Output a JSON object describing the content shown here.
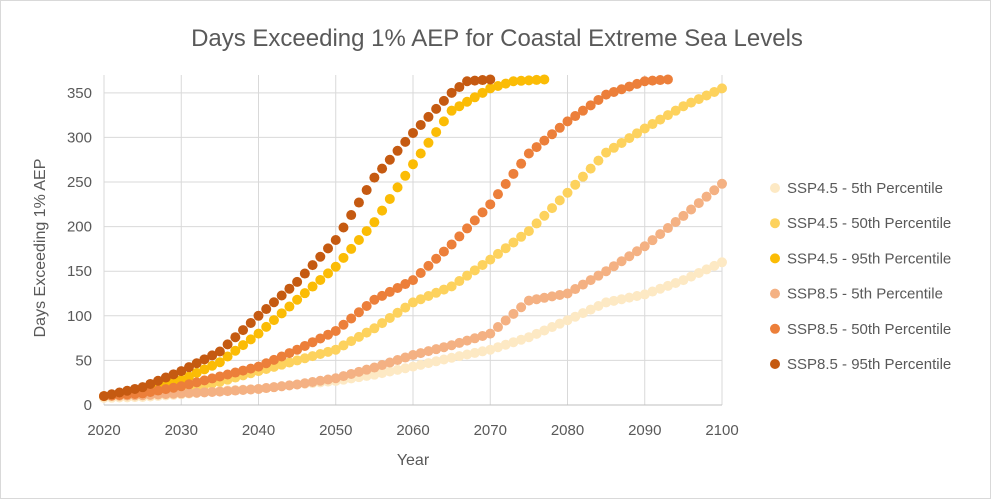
{
  "chart_data": {
    "type": "scatter",
    "title": "Days Exceeding 1% AEP for Coastal Extreme Sea Levels",
    "xlabel": "Year",
    "ylabel": "Days Exceeding 1% AEP",
    "xlim": [
      2020,
      2100
    ],
    "ylim": [
      0,
      370
    ],
    "xticks": [
      2020,
      2030,
      2040,
      2050,
      2060,
      2070,
      2080,
      2090,
      2100
    ],
    "yticks": [
      0,
      50,
      100,
      150,
      200,
      250,
      300,
      350
    ],
    "grid": "vertical and horizontal major gridlines",
    "legend_position": "right",
    "series": [
      {
        "name": "SSP4.5 - 5th Percentile",
        "color": "#fde9c4",
        "x": [
          2020,
          2025,
          2030,
          2035,
          2040,
          2045,
          2050,
          2055,
          2060,
          2065,
          2070,
          2075,
          2080,
          2085,
          2090,
          2095,
          2100
        ],
        "y": [
          8,
          9,
          12,
          16,
          18,
          23,
          27,
          34,
          43,
          53,
          62,
          76,
          95,
          115,
          124,
          140,
          160
        ]
      },
      {
        "name": "SSP4.5 - 50th Percentile",
        "color": "#fdd25d",
        "x": [
          2020,
          2025,
          2030,
          2035,
          2040,
          2045,
          2050,
          2055,
          2060,
          2065,
          2070,
          2075,
          2080,
          2085,
          2090,
          2095,
          2100
        ],
        "y": [
          10,
          12,
          17,
          26,
          38,
          50,
          62,
          86,
          115,
          133,
          163,
          195,
          238,
          283,
          310,
          335,
          355
        ]
      },
      {
        "name": "SSP4.5 - 95th Percentile",
        "color": "#fbbc05",
        "x": [
          2020,
          2025,
          2030,
          2035,
          2040,
          2045,
          2050,
          2055,
          2060,
          2065,
          2070,
          2073,
          2077
        ],
        "y": [
          10,
          17,
          28,
          48,
          80,
          118,
          155,
          205,
          270,
          330,
          355,
          363,
          365
        ]
      },
      {
        "name": "SSP8.5 - 5th Percentile",
        "color": "#f4b183",
        "x": [
          2020,
          2025,
          2030,
          2035,
          2040,
          2045,
          2050,
          2055,
          2060,
          2065,
          2070,
          2075,
          2080,
          2085,
          2090,
          2095,
          2100
        ],
        "y": [
          10,
          11,
          13,
          15,
          18,
          23,
          30,
          42,
          56,
          67,
          80,
          117,
          125,
          150,
          178,
          212,
          248
        ]
      },
      {
        "name": "SSP8.5 - 50th Percentile",
        "color": "#ec7f3a",
        "x": [
          2020,
          2025,
          2030,
          2035,
          2040,
          2045,
          2050,
          2055,
          2060,
          2065,
          2070,
          2075,
          2080,
          2085,
          2090,
          2093
        ],
        "y": [
          10,
          13,
          21,
          32,
          43,
          62,
          83,
          118,
          140,
          180,
          225,
          282,
          318,
          348,
          363,
          365
        ]
      },
      {
        "name": "SSP8.5 - 95th Percentile",
        "color": "#c55a11",
        "x": [
          2020,
          2025,
          2030,
          2035,
          2040,
          2045,
          2050,
          2055,
          2060,
          2065,
          2067,
          2070
        ],
        "y": [
          10,
          20,
          38,
          60,
          100,
          138,
          185,
          255,
          305,
          350,
          363,
          365
        ]
      }
    ]
  }
}
